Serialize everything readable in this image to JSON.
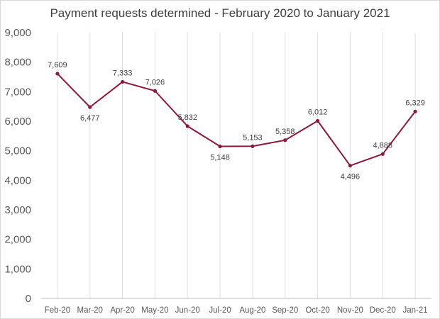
{
  "chart_data": {
    "type": "line",
    "title": "Payment requests determined - February 2020 to January 2021",
    "xlabel": "",
    "ylabel": "",
    "categories": [
      "Feb-20",
      "Mar-20",
      "Apr-20",
      "May-20",
      "Jun-20",
      "Jul-20",
      "Aug-20",
      "Sep-20",
      "Oct-20",
      "Nov-20",
      "Dec-20",
      "Jan-21"
    ],
    "series": [
      {
        "values": [
          7609,
          6477,
          7333,
          7026,
          5832,
          5148,
          5153,
          5358,
          6012,
          4496,
          4888,
          6329
        ],
        "data_labels": [
          "7,609",
          "6,477",
          "7,333",
          "7,026",
          "5,832",
          "5,148",
          "5,153",
          "5,358",
          "6,012",
          "4,496",
          "4,888",
          "6,329"
        ],
        "color": "#8B1A3C"
      }
    ],
    "ylim": [
      0,
      9000
    ],
    "y_ticks": [
      0,
      1000,
      2000,
      3000,
      4000,
      5000,
      6000,
      7000,
      8000,
      9000
    ],
    "y_tick_labels": [
      "0",
      "1,000",
      "2,000",
      "3,000",
      "4,000",
      "5,000",
      "6,000",
      "7,000",
      "8,000",
      "9,000"
    ],
    "grid": "vertical",
    "legend": "none",
    "colors": {
      "line": "#8B1A3C",
      "grid": "#e0e0e0",
      "axis": "#bfbfbf",
      "text": "#595959"
    }
  }
}
